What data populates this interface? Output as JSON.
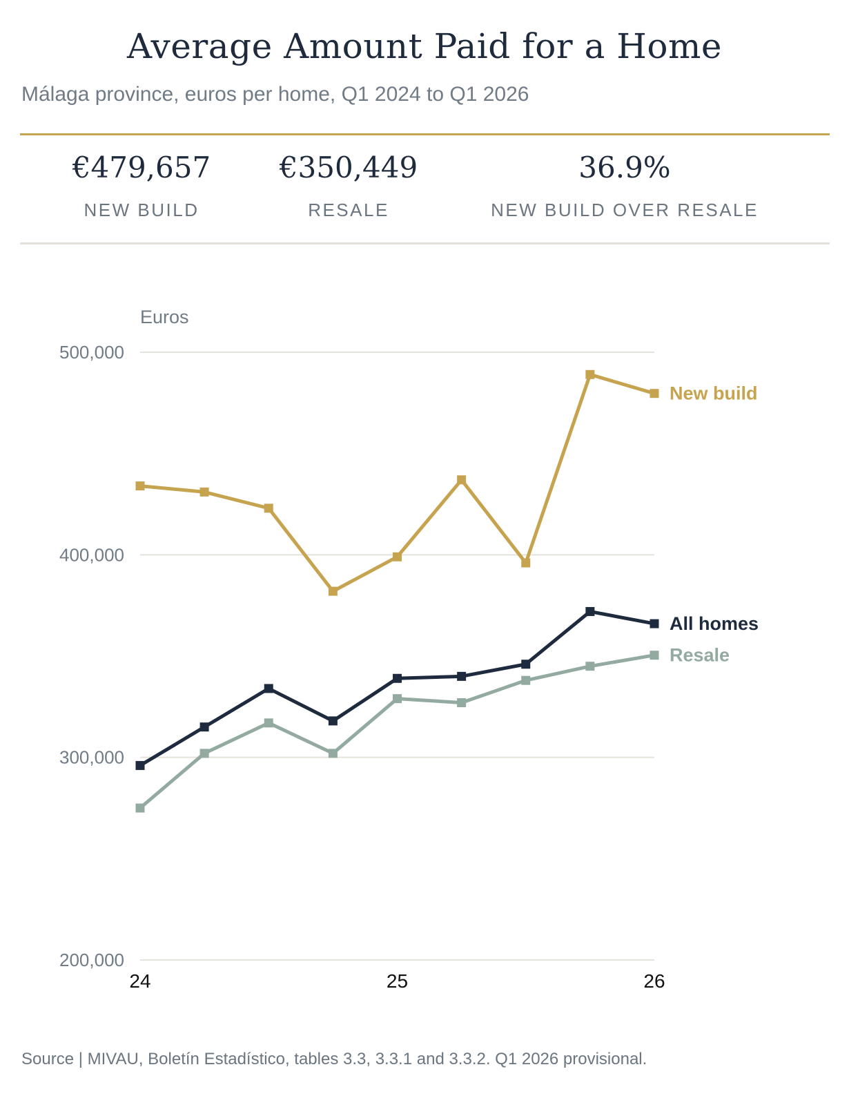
{
  "header": {
    "title": "Average Amount Paid for a Home",
    "subtitle": "Málaga province, euros per home, Q1 2024 to Q1 2026"
  },
  "stats": [
    {
      "value": "€479,657",
      "label": "NEW BUILD"
    },
    {
      "value": "€350,449",
      "label": "RESALE"
    },
    {
      "value": "36.9%",
      "label": "NEW BUILD OVER RESALE"
    }
  ],
  "chart_data": {
    "type": "line",
    "ylabel": "Euros",
    "ylim": [
      200000,
      500000
    ],
    "yticks": [
      500000,
      400000,
      300000,
      200000
    ],
    "ytick_labels": [
      "500,000",
      "400,000",
      "300,000",
      "200,000"
    ],
    "x": [
      24.0,
      24.25,
      24.5,
      24.75,
      25.0,
      25.25,
      25.5,
      25.75,
      26.0
    ],
    "xticks": [
      24,
      25,
      26
    ],
    "xtick_labels": [
      "24",
      "25",
      "26"
    ],
    "grid": true,
    "legend": "direct labels at line ends",
    "series": [
      {
        "name": "New build",
        "color": "#c6a34f",
        "values": [
          434000,
          431000,
          423000,
          382000,
          399000,
          437000,
          396000,
          489000,
          479657
        ]
      },
      {
        "name": "All homes",
        "color": "#1e2a3d",
        "values": [
          296000,
          315000,
          334000,
          318000,
          339000,
          340000,
          346000,
          372000,
          366000
        ]
      },
      {
        "name": "Resale",
        "color": "#93aaa0",
        "values": [
          275000,
          302000,
          317000,
          302000,
          329000,
          327000,
          338000,
          345000,
          350449
        ]
      }
    ]
  },
  "footer": {
    "source": "Source | MIVAU, Boletín Estadístico, tables 3.3, 3.3.1 and 3.3.2. Q1 2026 provisional."
  }
}
